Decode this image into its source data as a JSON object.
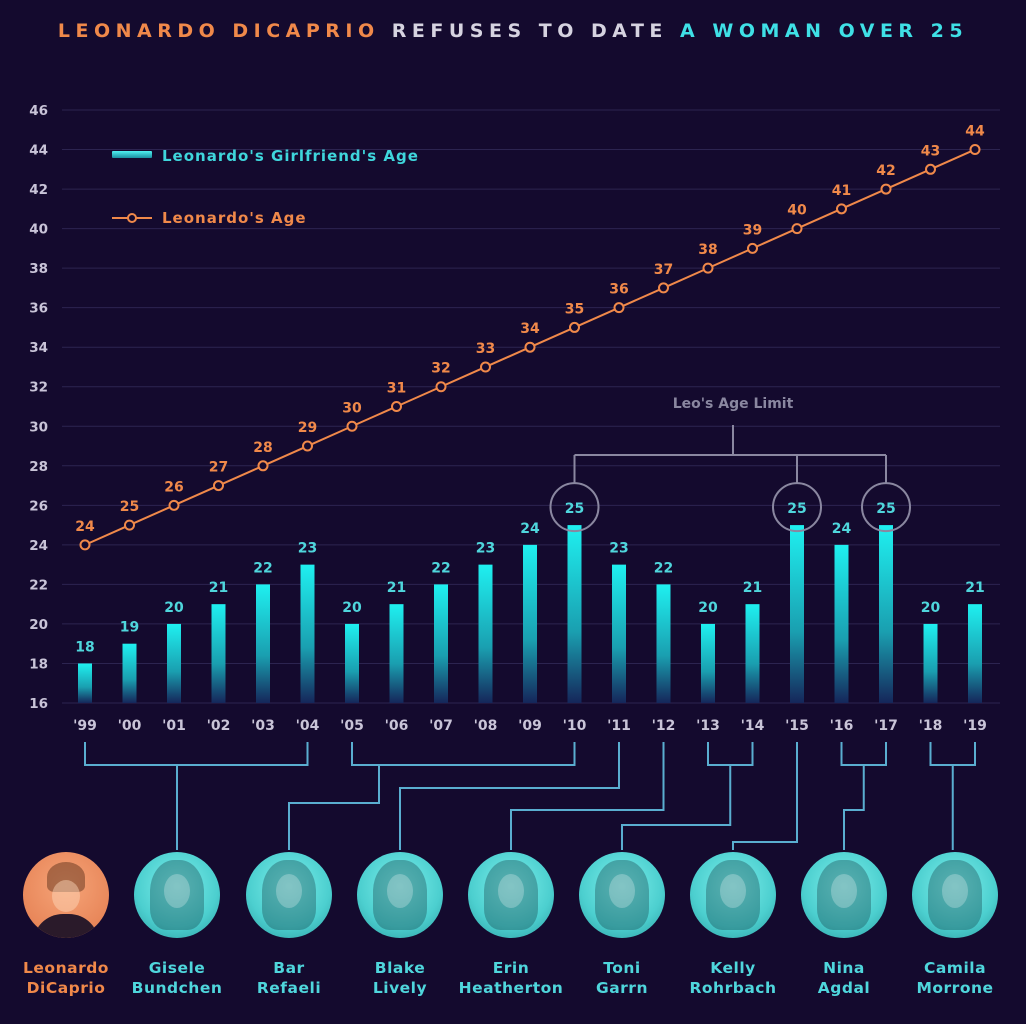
{
  "title": {
    "part1": "LEONARDO DICAPRIO",
    "part2": "REFUSES TO DATE",
    "part3": "A WOMAN OVER 25"
  },
  "colors": {
    "background": "#140a2e",
    "leo": "#f0894a",
    "girlfriend": "#3fe0e6",
    "grid": "#2c2450",
    "axis_text": "#c9c4d8",
    "annotation": "#8a87a0",
    "connector": "#5aaed0"
  },
  "chart_data": {
    "type": "bar",
    "title": "LEONARDO DICAPRIO REFUSES TO DATE A WOMAN OVER 25",
    "xlabel": "",
    "ylabel": "",
    "ylim": [
      16,
      46
    ],
    "yticks": [
      16,
      18,
      20,
      22,
      24,
      26,
      28,
      30,
      32,
      34,
      36,
      38,
      40,
      42,
      44,
      46
    ],
    "grid": true,
    "legend_position": "top-left",
    "categories": [
      "'99",
      "'00",
      "'01",
      "'02",
      "'03",
      "'04",
      "'05",
      "'06",
      "'07",
      "'08",
      "'09",
      "'10",
      "'11",
      "'12",
      "'13",
      "'14",
      "'15",
      "'16",
      "'17",
      "'18",
      "'19"
    ],
    "series": [
      {
        "name": "Leonardo's Girlfriend's Age",
        "type": "bar",
        "values": [
          18,
          19,
          20,
          21,
          22,
          23,
          20,
          21,
          22,
          23,
          24,
          25,
          23,
          22,
          20,
          21,
          25,
          24,
          25,
          20,
          21
        ]
      },
      {
        "name": "Leonardo's Age",
        "type": "line",
        "values": [
          24,
          25,
          26,
          27,
          28,
          29,
          30,
          31,
          32,
          33,
          34,
          35,
          36,
          37,
          38,
          39,
          40,
          41,
          42,
          43,
          44
        ]
      }
    ],
    "annotations": [
      {
        "label": "Leo's Age Limit",
        "highlight_value": 25,
        "highlight_categories": [
          "'10",
          "'15",
          "'17"
        ]
      }
    ]
  },
  "people": [
    {
      "name_line1": "Leonardo",
      "name_line2": "DiCaprio",
      "role": "leo",
      "years": []
    },
    {
      "name_line1": "Gisele",
      "name_line2": "Bundchen",
      "role": "girlfriend",
      "years": [
        "'99",
        "'04"
      ]
    },
    {
      "name_line1": "Bar",
      "name_line2": "Refaeli",
      "role": "girlfriend",
      "years": [
        "'05",
        "'10"
      ]
    },
    {
      "name_line1": "Blake",
      "name_line2": "Lively",
      "role": "girlfriend",
      "years": [
        "'11"
      ]
    },
    {
      "name_line1": "Erin",
      "name_line2": "Heatherton",
      "role": "girlfriend",
      "years": [
        "'12"
      ]
    },
    {
      "name_line1": "Toni",
      "name_line2": "Garrn",
      "role": "girlfriend",
      "years": [
        "'13",
        "'14"
      ]
    },
    {
      "name_line1": "Kelly",
      "name_line2": "Rohrbach",
      "role": "girlfriend",
      "years": [
        "'15"
      ]
    },
    {
      "name_line1": "Nina",
      "name_line2": "Agdal",
      "role": "girlfriend",
      "years": [
        "'16",
        "'17"
      ]
    },
    {
      "name_line1": "Camila",
      "name_line2": "Morrone",
      "role": "girlfriend",
      "years": [
        "'18",
        "'19"
      ]
    }
  ]
}
